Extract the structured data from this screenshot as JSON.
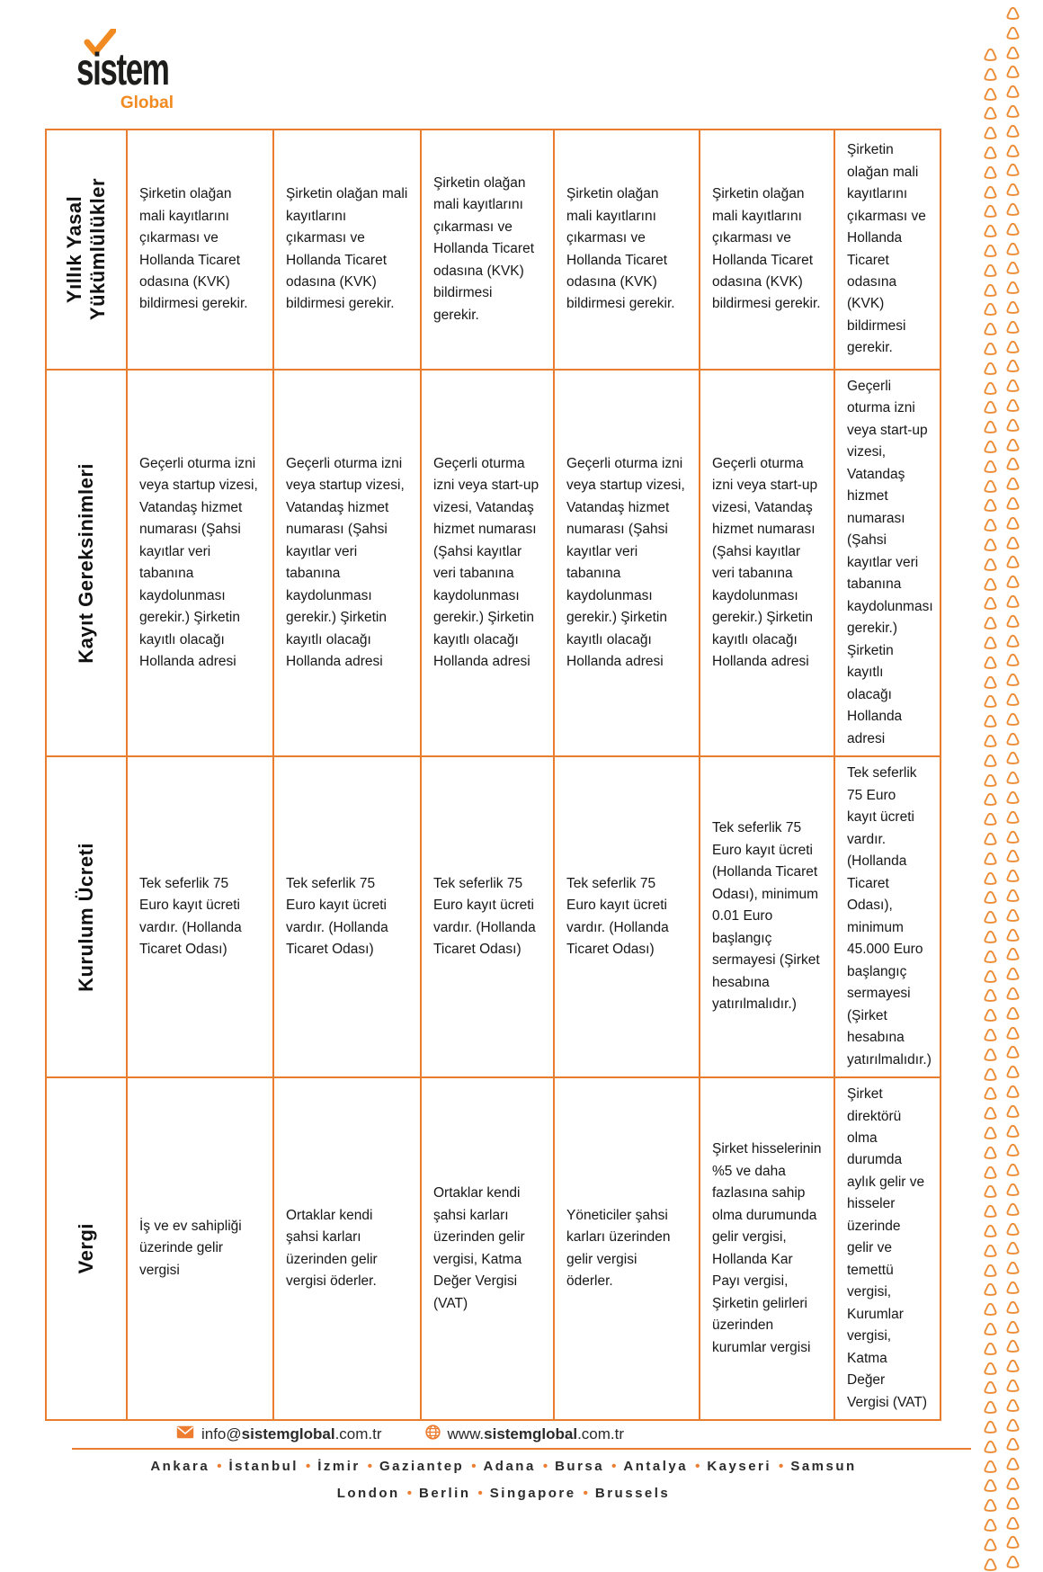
{
  "logo": {
    "brand": "sistem",
    "sub": "Global"
  },
  "colors": {
    "accent": "#E87D2E",
    "cell_bg": "#FCE4D6",
    "logo_orange": "#F08A21",
    "text": "#1A1A1A"
  },
  "table": {
    "row_headers": [
      "Yıllık Yasal\nYükümlülükler",
      "Kayıt Gereksinimleri",
      "Kurulum Ücreti",
      "Vergi"
    ],
    "rows": [
      {
        "cells": [
          "Şirketin olağan mali kayıtlarını çıkarması ve Hollanda Ticaret odasına (KVK) bildirmesi gerekir.",
          "Şirketin olağan mali kayıtlarını çıkarması ve Hollanda Ticaret odasına (KVK) bildirmesi gerekir.",
          "Şirketin olağan mali kayıtlarını çıkarması ve Hollanda Ticaret odasına (KVK) bildirmesi gerekir.",
          "Şirketin olağan mali kayıtlarını çıkarması ve Hollanda Ticaret odasına (KVK) bildirmesi gerekir.",
          "Şirketin olağan mali kayıtlarını çıkarması ve Hollanda Ticaret odasına (KVK) bildirmesi gerekir.",
          "Şirketin olağan mali kayıtlarını çıkarması ve Hollanda Ticaret odasına (KVK) bildirmesi gerekir."
        ]
      },
      {
        "cells": [
          "Geçerli oturma izni veya startup vizesi, Vatandaş hizmet numarası (Şahsi kayıtlar veri tabanına kaydolunması gerekir.) Şirketin kayıtlı olacağı Hollanda adresi",
          "Geçerli oturma izni veya startup vizesi, Vatandaş hizmet numarası (Şahsi kayıtlar veri tabanına kaydolunması gerekir.) Şirketin kayıtlı olacağı Hollanda adresi",
          "Geçerli oturma izni veya start-up vizesi, Vatandaş hizmet numarası (Şahsi kayıtlar veri tabanına kaydolunması gerekir.) Şirketin kayıtlı olacağı Hollanda adresi",
          "Geçerli oturma izni veya startup vizesi, Vatandaş hizmet numarası (Şahsi kayıtlar veri tabanına kaydolunması gerekir.) Şirketin kayıtlı olacağı Hollanda adresi",
          "Geçerli oturma izni veya start-up vizesi, Vatandaş hizmet numarası (Şahsi kayıtlar veri tabanına kaydolunması gerekir.) Şirketin kayıtlı olacağı Hollanda adresi",
          "Geçerli oturma izni veya start-up vizesi, Vatandaş hizmet numarası (Şahsi kayıtlar veri tabanına kaydolunması gerekir.) Şirketin kayıtlı olacağı Hollanda adresi"
        ]
      },
      {
        "cells": [
          "Tek seferlik 75 Euro kayıt ücreti vardır. (Hollanda Ticaret Odası)",
          "Tek seferlik 75 Euro kayıt ücreti vardır. (Hollanda Ticaret Odası)",
          "Tek seferlik 75 Euro kayıt ücreti vardır. (Hollanda Ticaret Odası)",
          "Tek seferlik 75 Euro kayıt ücreti vardır. (Hollanda Ticaret Odası)",
          "Tek seferlik 75 Euro kayıt ücreti (Hollanda Ticaret Odası), minimum 0.01 Euro başlangıç sermayesi (Şirket hesabına yatırılmalıdır.)",
          "Tek seferlik 75 Euro kayıt ücreti vardır. (Hollanda Ticaret Odası), minimum 45.000 Euro başlangıç sermayesi (Şirket hesabına yatırılmalıdır.)"
        ]
      },
      {
        "cells": [
          "İş ve ev sahipliği üzerinde gelir vergisi",
          "Ortaklar kendi şahsi karları üzerinden gelir vergisi öderler.",
          "Ortaklar kendi şahsi karları üzerinden gelir vergisi, Katma Değer Vergisi (VAT)",
          "Yöneticiler şahsi karları üzerinden gelir vergisi öderler.",
          "Şirket hisselerinin %5 ve daha fazlasına sahip olma durumunda gelir vergisi, Hollanda Kar Payı vergisi, Şirketin gelirleri üzerinden kurumlar vergisi",
          "Şirket direktörü olma durumda aylık gelir ve hisseler üzerinde gelir ve temettü vergisi, Kurumlar vergisi, Katma Değer Vergisi (VAT)"
        ]
      }
    ]
  },
  "footer": {
    "email_pre": "info@",
    "email_bold": "sistemglobal",
    "email_post": ".com.tr",
    "web_pre": "www.",
    "web_bold": "sistemglobal",
    "web_post": ".com.tr",
    "cities_row1": [
      "Ankara",
      "İstanbul",
      "İzmir",
      "Gaziantep",
      "Adana",
      "Bursa",
      "Antalya",
      "Kayseri",
      "Samsun"
    ],
    "cities_row2": [
      "London",
      "Berlin",
      "Singapore",
      "Brussels"
    ]
  }
}
